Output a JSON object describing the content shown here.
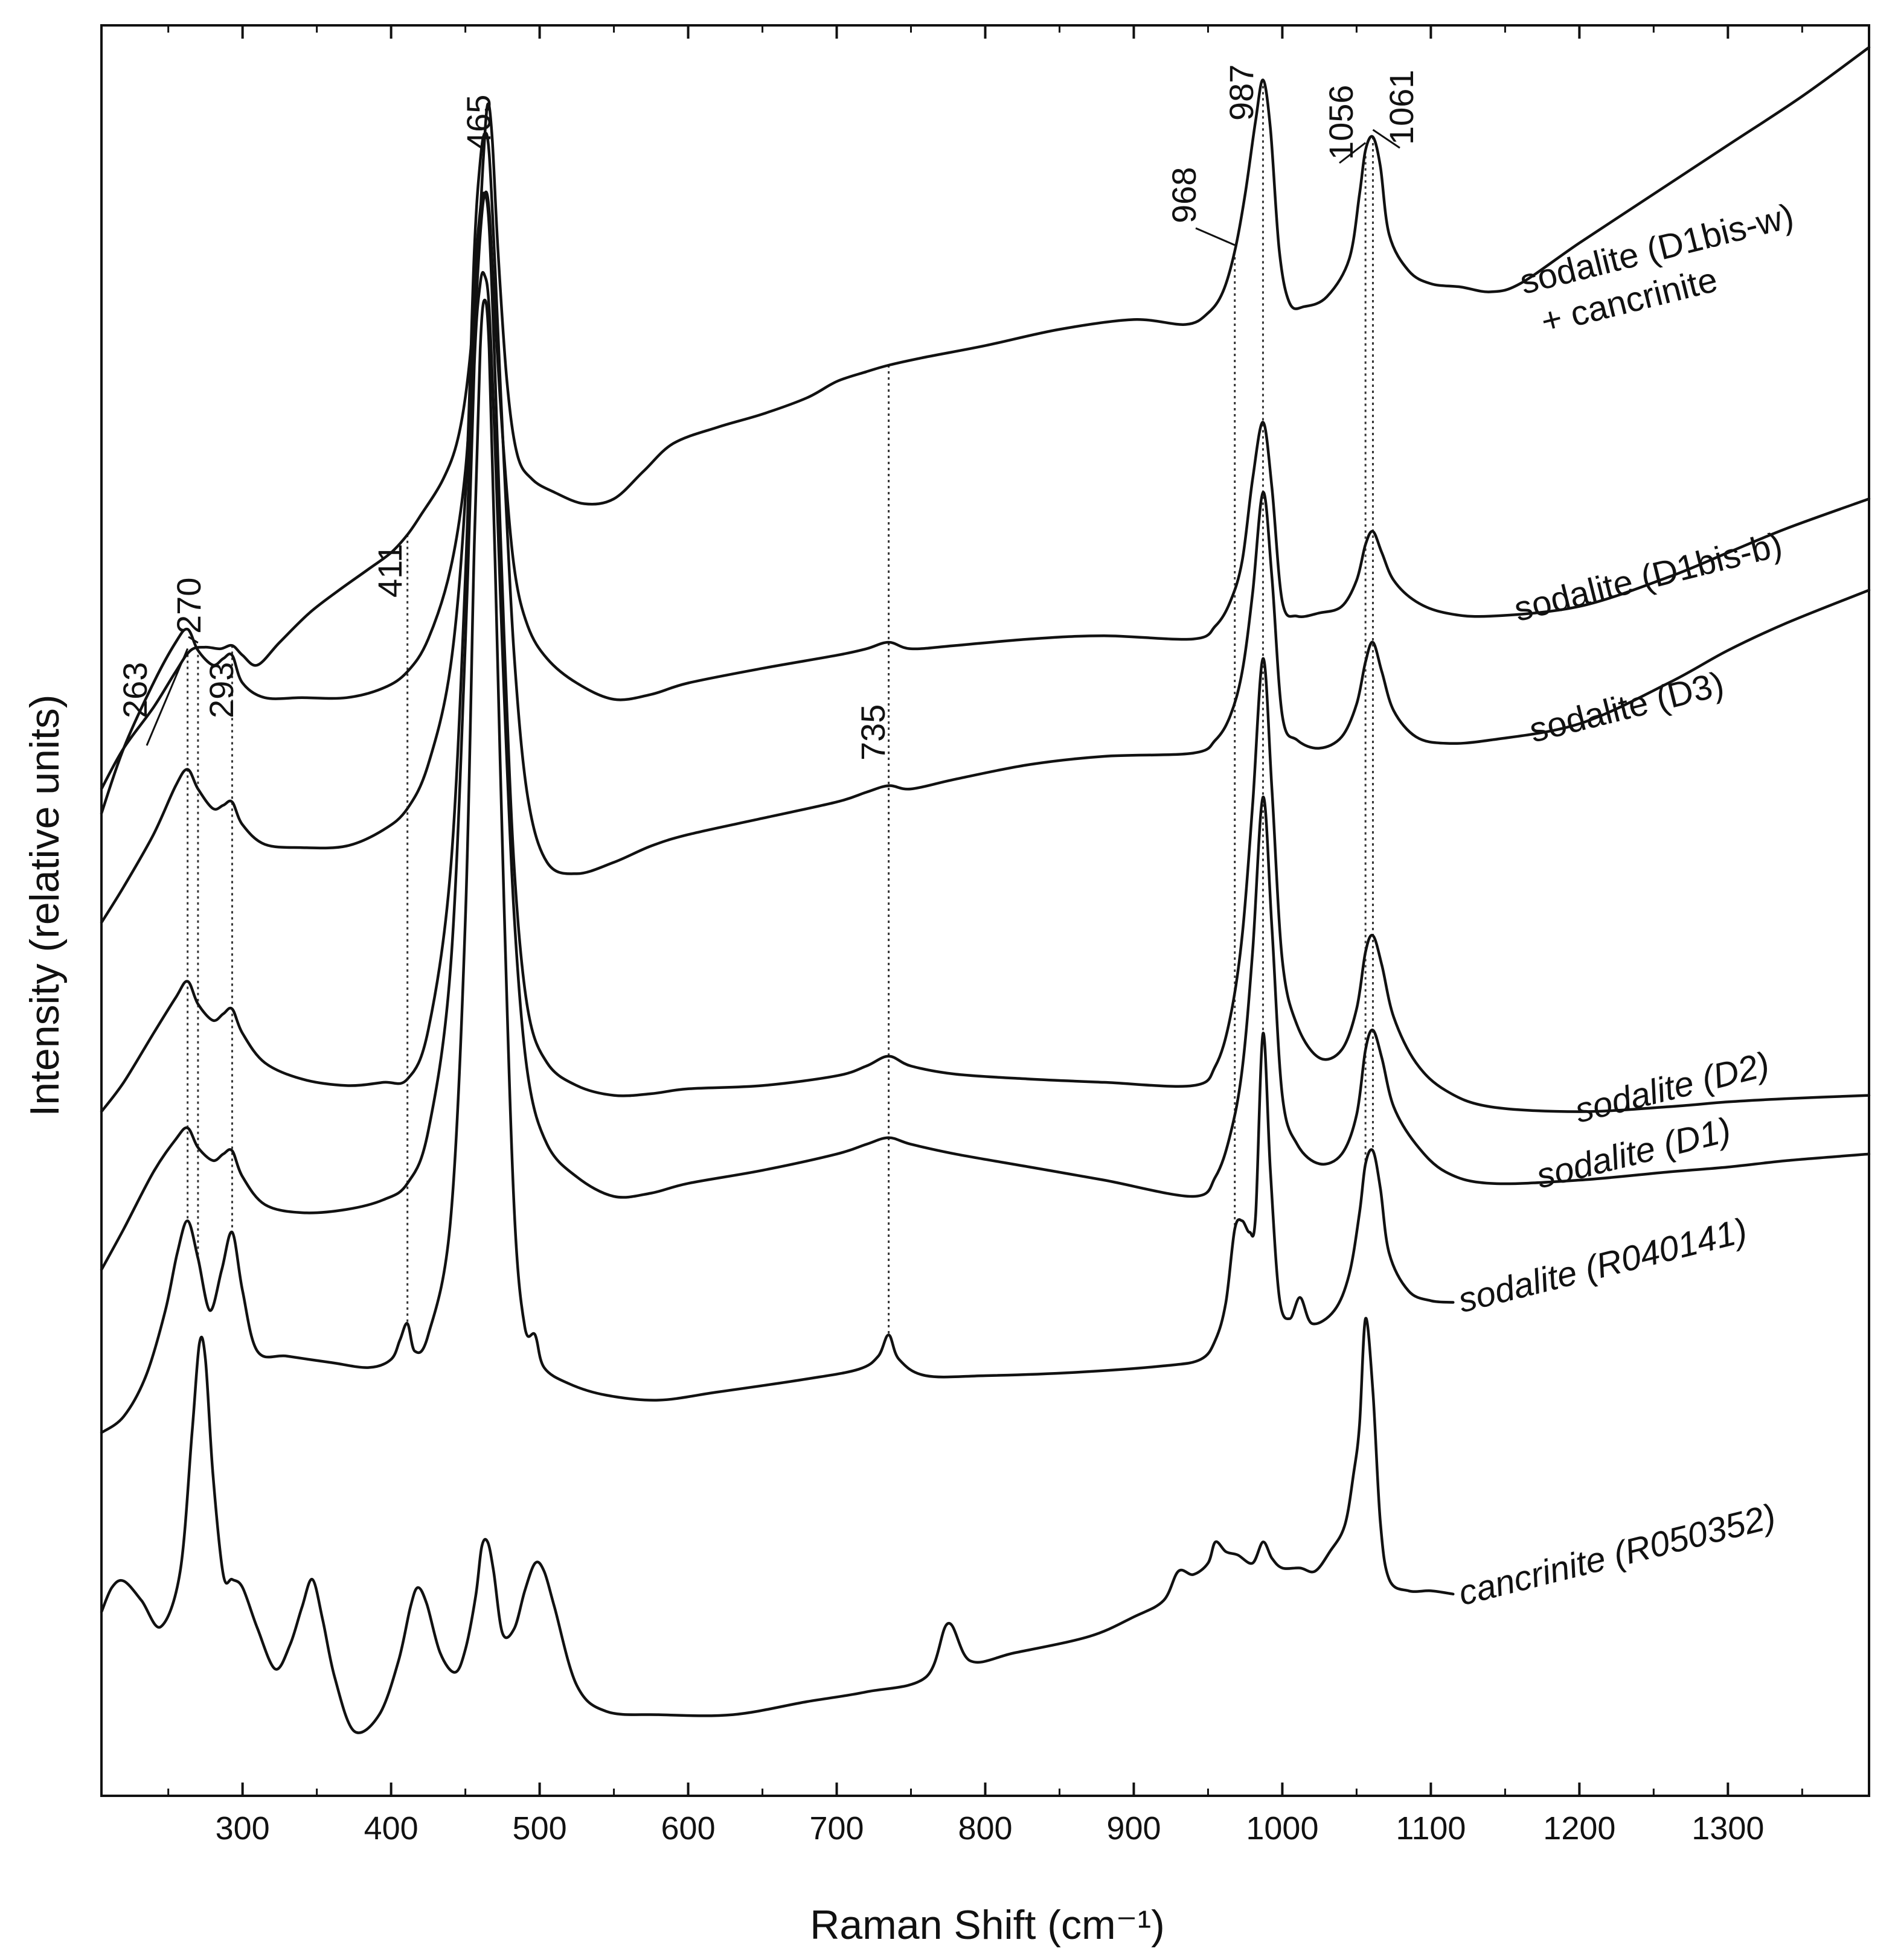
{
  "chart_data": {
    "type": "line",
    "title": "",
    "xlabel": "Raman Shift (cm⁻¹)",
    "ylabel": "Intensity (relative units)",
    "xlim": [
      205,
      1395
    ],
    "ylim": [
      0,
      10
    ],
    "grid": false,
    "y_ticks_visible": false,
    "x_ticks": [
      300,
      400,
      500,
      600,
      700,
      800,
      900,
      1000,
      1100,
      1200,
      1300
    ],
    "x_tick_labels": [
      "300",
      "400",
      "500",
      "600",
      "700",
      "800",
      "900",
      "1000",
      "1100",
      "1200",
      "1300"
    ],
    "x_minor_ticks": [
      250,
      350,
      450,
      550,
      650,
      750,
      850,
      950,
      1050,
      1150,
      1250,
      1350
    ],
    "peak_markers": [
      {
        "label": "263",
        "x": 263
      },
      {
        "label": "270",
        "x": 270
      },
      {
        "label": "293",
        "x": 293
      },
      {
        "label": "411",
        "x": 411
      },
      {
        "label": "465",
        "x": 465
      },
      {
        "label": "735",
        "x": 735
      },
      {
        "label": "968",
        "x": 968
      },
      {
        "label": "987",
        "x": 987
      },
      {
        "label": "1056",
        "x": 1056
      },
      {
        "label": "1061",
        "x": 1061
      }
    ],
    "series": [
      {
        "name": "sodalite (D1bis-w)",
        "label_line2": "+ cancrinite",
        "italic": false,
        "x": [
          205,
          220,
          240,
          255,
          265,
          275,
          285,
          293,
          300,
          310,
          325,
          345,
          365,
          385,
          400,
          411,
          420,
          435,
          445,
          452,
          458,
          462,
          465,
          468,
          472,
          478,
          485,
          495,
          510,
          530,
          550,
          570,
          590,
          620,
          650,
          680,
          700,
          720,
          735,
          760,
          800,
          850,
          900,
          935,
          950,
          960,
          968,
          975,
          982,
          987,
          992,
          998,
          1005,
          1015,
          1030,
          1045,
          1052,
          1056,
          1061,
          1066,
          1072,
          1085,
          1100,
          1120,
          1140,
          1160,
          1200,
          1250,
          1300,
          1350,
          1395
        ],
        "values": [
          5.9,
          6.15,
          6.4,
          6.62,
          6.75,
          6.77,
          6.76,
          6.78,
          6.72,
          6.66,
          6.8,
          6.98,
          7.12,
          7.25,
          7.35,
          7.46,
          7.58,
          7.8,
          8.05,
          8.45,
          9.1,
          9.75,
          10.1,
          9.9,
          9.2,
          8.4,
          7.95,
          7.8,
          7.72,
          7.65,
          7.68,
          7.85,
          8.02,
          8.12,
          8.2,
          8.3,
          8.4,
          8.46,
          8.5,
          8.55,
          8.62,
          8.72,
          8.78,
          8.75,
          8.82,
          8.95,
          9.2,
          9.55,
          10.0,
          10.25,
          9.95,
          9.2,
          8.88,
          8.86,
          8.92,
          9.15,
          9.55,
          9.82,
          9.9,
          9.72,
          9.3,
          9.08,
          9.0,
          8.98,
          8.95,
          9.0,
          9.25,
          9.55,
          9.85,
          10.15,
          10.45
        ]
      },
      {
        "name": "sodalite (D1bis-b)",
        "italic": false,
        "x": [
          205,
          220,
          240,
          255,
          263,
          270,
          280,
          287,
          293,
          300,
          315,
          340,
          370,
          395,
          411,
          425,
          440,
          450,
          456,
          460,
          463,
          466,
          470,
          476,
          483,
          492,
          505,
          525,
          550,
          575,
          600,
          650,
          700,
          720,
          735,
          750,
          780,
          830,
          880,
          940,
          955,
          965,
          973,
          980,
          987,
          993,
          1000,
          1010,
          1025,
          1040,
          1050,
          1056,
          1061,
          1067,
          1075,
          1090,
          1110,
          1140,
          1200,
          1260,
          1300,
          1340,
          1395
        ],
        "values": [
          5.75,
          6.15,
          6.55,
          6.8,
          6.88,
          6.75,
          6.66,
          6.7,
          6.72,
          6.55,
          6.46,
          6.46,
          6.46,
          6.52,
          6.62,
          6.82,
          7.25,
          7.85,
          8.7,
          9.3,
          9.55,
          9.45,
          8.8,
          7.95,
          7.25,
          6.9,
          6.7,
          6.55,
          6.45,
          6.48,
          6.55,
          6.64,
          6.72,
          6.76,
          6.8,
          6.76,
          6.78,
          6.82,
          6.84,
          6.82,
          6.9,
          7.05,
          7.3,
          7.8,
          8.15,
          7.75,
          7.05,
          6.96,
          6.98,
          7.02,
          7.18,
          7.4,
          7.48,
          7.35,
          7.18,
          7.05,
          6.98,
          6.96,
          7.02,
          7.2,
          7.35,
          7.5,
          7.68
        ]
      },
      {
        "name": "sodalite (D3)",
        "italic": false,
        "x": [
          205,
          220,
          240,
          255,
          263,
          270,
          280,
          287,
          293,
          300,
          315,
          340,
          370,
          395,
          411,
          425,
          440,
          450,
          456,
          460,
          463,
          466,
          470,
          476,
          483,
          492,
          505,
          525,
          550,
          575,
          600,
          650,
          700,
          720,
          735,
          750,
          780,
          830,
          880,
          940,
          955,
          965,
          973,
          980,
          987,
          993,
          1000,
          1010,
          1025,
          1040,
          1050,
          1056,
          1061,
          1067,
          1075,
          1090,
          1110,
          1140,
          1200,
          1260,
          1300,
          1340,
          1395
        ],
        "values": [
          5.08,
          5.3,
          5.62,
          5.92,
          6.02,
          5.9,
          5.78,
          5.8,
          5.82,
          5.68,
          5.56,
          5.54,
          5.55,
          5.65,
          5.78,
          6.05,
          6.65,
          7.7,
          9.2,
          9.75,
          9.92,
          9.8,
          9.1,
          7.9,
          6.7,
          5.85,
          5.45,
          5.38,
          5.45,
          5.55,
          5.62,
          5.72,
          5.82,
          5.88,
          5.92,
          5.9,
          5.96,
          6.05,
          6.1,
          6.12,
          6.2,
          6.35,
          6.62,
          7.1,
          7.72,
          7.2,
          6.35,
          6.2,
          6.15,
          6.22,
          6.42,
          6.68,
          6.8,
          6.62,
          6.38,
          6.22,
          6.18,
          6.2,
          6.3,
          6.55,
          6.75,
          6.92,
          7.12
        ]
      },
      {
        "name": "sodalite (D2)",
        "italic": true,
        "x": [
          205,
          220,
          240,
          255,
          263,
          270,
          280,
          287,
          293,
          300,
          315,
          340,
          370,
          395,
          411,
          425,
          440,
          450,
          456,
          460,
          463,
          466,
          470,
          476,
          483,
          492,
          505,
          525,
          550,
          575,
          600,
          650,
          700,
          720,
          735,
          750,
          780,
          830,
          880,
          940,
          955,
          965,
          973,
          980,
          987,
          993,
          1000,
          1010,
          1025,
          1040,
          1050,
          1056,
          1061,
          1067,
          1075,
          1090,
          1110,
          1140,
          1200,
          1260,
          1300,
          1340,
          1395
        ],
        "values": [
          3.92,
          4.1,
          4.4,
          4.62,
          4.72,
          4.58,
          4.48,
          4.52,
          4.55,
          4.4,
          4.22,
          4.12,
          4.08,
          4.1,
          4.12,
          4.42,
          5.4,
          7.2,
          8.9,
          9.45,
          9.55,
          9.35,
          8.45,
          6.85,
          5.4,
          4.55,
          4.22,
          4.08,
          4.02,
          4.03,
          4.06,
          4.08,
          4.14,
          4.2,
          4.26,
          4.2,
          4.15,
          4.12,
          4.1,
          4.08,
          4.2,
          4.5,
          5.0,
          5.8,
          6.7,
          5.9,
          4.85,
          4.45,
          4.25,
          4.3,
          4.55,
          4.9,
          5.0,
          4.82,
          4.5,
          4.22,
          4.05,
          3.95,
          3.92,
          3.95,
          3.98,
          4.0,
          4.02
        ]
      },
      {
        "name": "sodalite (D1)",
        "italic": true,
        "x": [
          205,
          220,
          240,
          255,
          263,
          270,
          280,
          287,
          293,
          300,
          315,
          340,
          370,
          395,
          411,
          425,
          440,
          450,
          456,
          460,
          463,
          466,
          470,
          476,
          483,
          492,
          505,
          525,
          550,
          575,
          600,
          650,
          700,
          720,
          735,
          750,
          780,
          830,
          880,
          940,
          955,
          965,
          973,
          980,
          987,
          993,
          1000,
          1010,
          1025,
          1040,
          1050,
          1056,
          1061,
          1067,
          1075,
          1090,
          1110,
          1140,
          1200,
          1260,
          1300,
          1340,
          1395
        ],
        "values": [
          2.95,
          3.2,
          3.55,
          3.75,
          3.82,
          3.7,
          3.62,
          3.66,
          3.68,
          3.52,
          3.35,
          3.3,
          3.32,
          3.38,
          3.48,
          3.8,
          4.8,
          6.8,
          8.5,
          9.0,
          9.05,
          8.85,
          8.0,
          6.5,
          5.1,
          4.15,
          3.72,
          3.52,
          3.4,
          3.42,
          3.48,
          3.56,
          3.66,
          3.72,
          3.76,
          3.72,
          3.66,
          3.58,
          3.5,
          3.4,
          3.52,
          3.78,
          4.18,
          4.9,
          5.85,
          5.05,
          4.02,
          3.72,
          3.6,
          3.66,
          3.9,
          4.3,
          4.42,
          4.25,
          3.95,
          3.72,
          3.55,
          3.48,
          3.5,
          3.55,
          3.58,
          3.62,
          3.66
        ]
      },
      {
        "name": "sodalite (R040141)",
        "italic": true,
        "x": [
          205,
          220,
          235,
          248,
          256,
          263,
          270,
          278,
          286,
          293,
          300,
          310,
          330,
          360,
          385,
          400,
          406,
          411,
          416,
          425,
          440,
          450,
          456,
          460,
          463,
          466,
          470,
          476,
          483,
          490,
          497,
          503,
          520,
          545,
          580,
          620,
          680,
          715,
          728,
          735,
          742,
          760,
          800,
          860,
          920,
          945,
          955,
          962,
          968,
          973,
          978,
          982,
          987,
          992,
          998,
          1005,
          1012,
          1020,
          1035,
          1045,
          1052,
          1056,
          1061,
          1066,
          1072,
          1085,
          1100,
          1115
        ],
        "values": [
          1.95,
          2.05,
          2.3,
          2.7,
          3.05,
          3.25,
          3.02,
          2.7,
          2.95,
          3.18,
          2.82,
          2.45,
          2.42,
          2.38,
          2.35,
          2.4,
          2.52,
          2.62,
          2.45,
          2.55,
          3.25,
          5.1,
          7.4,
          8.6,
          8.9,
          8.6,
          7.3,
          5.2,
          3.3,
          2.6,
          2.55,
          2.35,
          2.25,
          2.18,
          2.15,
          2.2,
          2.28,
          2.34,
          2.42,
          2.55,
          2.4,
          2.3,
          2.3,
          2.32,
          2.36,
          2.4,
          2.52,
          2.75,
          3.2,
          3.25,
          3.18,
          3.28,
          4.4,
          3.55,
          2.78,
          2.65,
          2.78,
          2.62,
          2.7,
          2.92,
          3.3,
          3.6,
          3.68,
          3.45,
          3.05,
          2.82,
          2.76,
          2.75
        ]
      },
      {
        "name": "cancrinite (R050352)",
        "italic": true,
        "x": [
          205,
          212,
          220,
          232,
          245,
          258,
          266,
          271,
          275,
          280,
          287,
          293,
          300,
          310,
          322,
          332,
          340,
          347,
          354,
          362,
          375,
          392,
          405,
          413,
          418,
          424,
          433,
          443,
          450,
          457,
          461,
          465,
          469,
          475,
          483,
          490,
          497,
          503,
          510,
          525,
          545,
          580,
          630,
          680,
          720,
          760,
          775,
          790,
          820,
          870,
          900,
          920,
          930,
          940,
          950,
          955,
          962,
          970,
          980,
          987,
          993,
          1000,
          1012,
          1022,
          1032,
          1042,
          1048,
          1052,
          1056,
          1061,
          1066,
          1072,
          1085,
          1100,
          1115
        ],
        "values": [
          0.85,
          1.0,
          1.04,
          0.92,
          0.76,
          1.1,
          1.95,
          2.5,
          2.4,
          1.7,
          1.08,
          1.05,
          1.0,
          0.75,
          0.5,
          0.65,
          0.88,
          1.05,
          0.8,
          0.45,
          0.12,
          0.22,
          0.55,
          0.88,
          1.0,
          0.9,
          0.6,
          0.48,
          0.62,
          0.95,
          1.25,
          1.28,
          1.1,
          0.72,
          0.75,
          0.98,
          1.15,
          1.1,
          0.88,
          0.4,
          0.24,
          0.22,
          0.22,
          0.3,
          0.36,
          0.45,
          0.78,
          0.55,
          0.6,
          0.7,
          0.82,
          0.92,
          1.1,
          1.08,
          1.15,
          1.28,
          1.22,
          1.2,
          1.15,
          1.28,
          1.18,
          1.12,
          1.12,
          1.1,
          1.22,
          1.38,
          1.7,
          2.0,
          2.65,
          2.2,
          1.4,
          1.05,
          0.98,
          0.98,
          0.96
        ]
      }
    ]
  }
}
